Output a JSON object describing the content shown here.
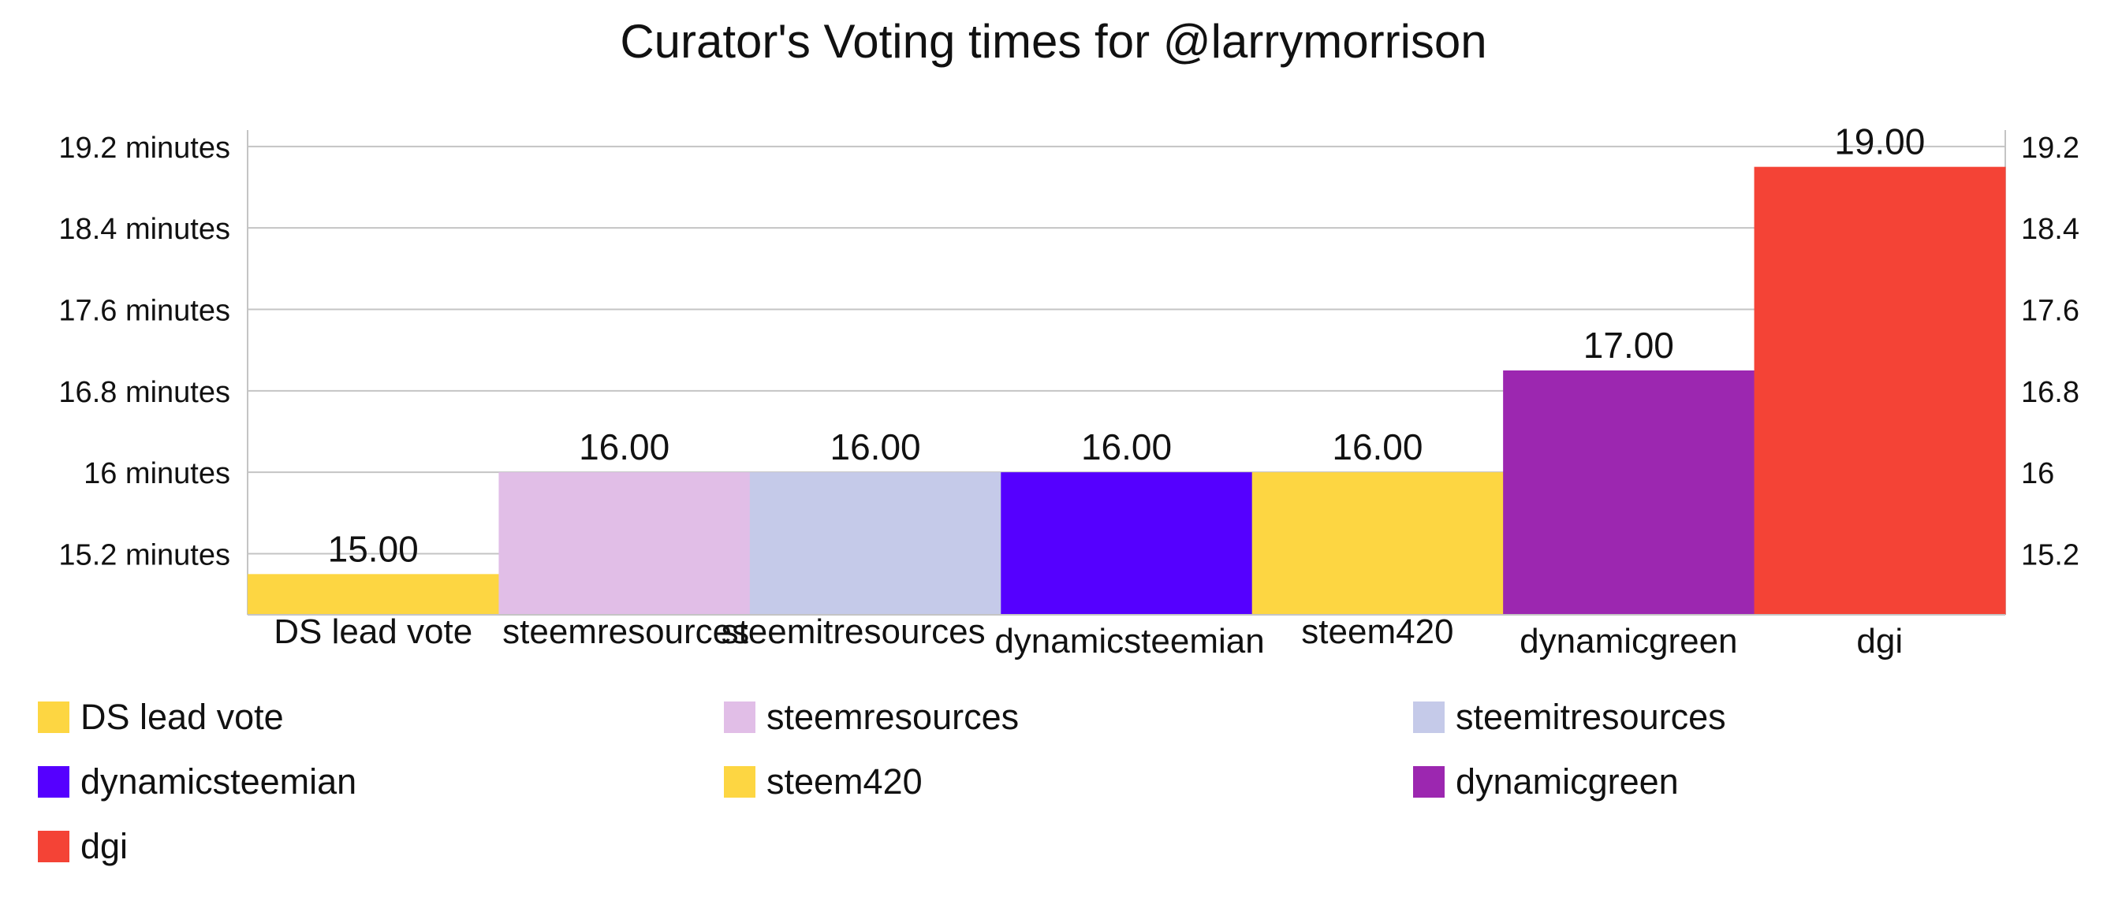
{
  "chart_data": {
    "type": "bar",
    "title": "Curator's Voting times for @larrymorrison",
    "xlabel": "",
    "ylabel": "",
    "categories": [
      "DS lead vote",
      "steemresources",
      "steemitresources",
      "dynamicsteemian",
      "steem420",
      "dynamicgreen",
      "dgi"
    ],
    "values": [
      15.0,
      16.0,
      16.0,
      16.0,
      16.0,
      17.0,
      19.0
    ],
    "data_labels": [
      "15.00",
      "16.00",
      "16.00",
      "16.00",
      "16.00",
      "17.00",
      "19.00"
    ],
    "colors": [
      "#fdd642",
      "#e1bee7",
      "#c5cae9",
      "#5500ff",
      "#fdd642",
      "#9c27b0",
      "#f44336"
    ],
    "ylim": [
      14.6,
      19.4
    ],
    "yticks": [
      15.2,
      16,
      16.8,
      17.6,
      18.4,
      19.2
    ],
    "ytick_labels_left": [
      "15.2 minutes",
      "16 minutes",
      "16.8 minutes",
      "17.6 minutes",
      "18.4 minutes",
      "19.2 minutes"
    ],
    "ytick_labels_right": [
      "15.2",
      "16",
      "16.8",
      "17.6",
      "18.4",
      "19.2"
    ],
    "grid": true,
    "legend_position": "bottom"
  }
}
